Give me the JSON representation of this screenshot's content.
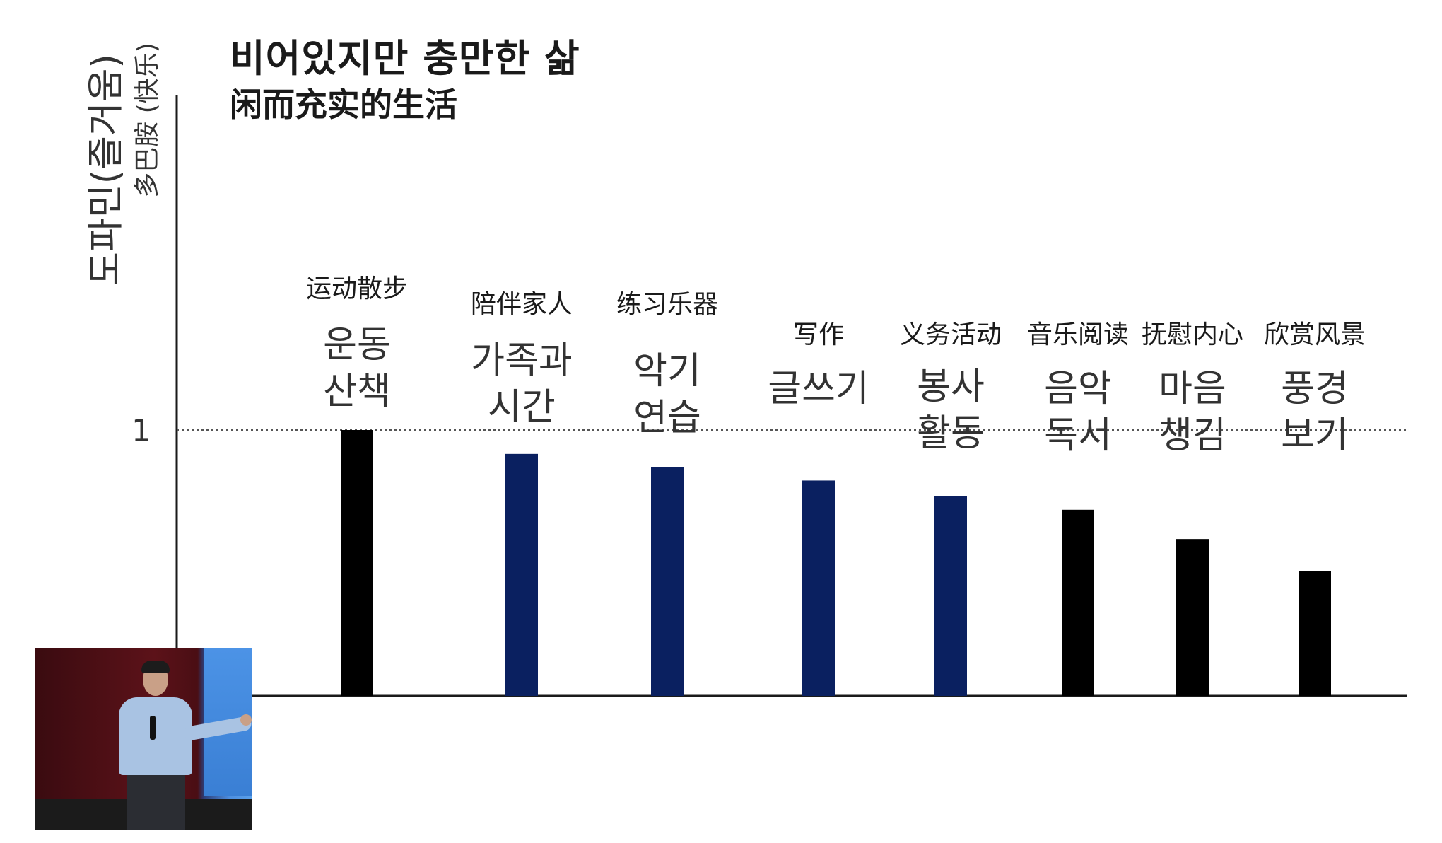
{
  "title": {
    "korean": "비어있지만 충만한 삶",
    "chinese": "闲而充实的生活"
  },
  "chart_data": {
    "type": "bar",
    "title": "비어있지만 충만한 삶",
    "subtitle": "闲而充实的生活",
    "ylabel": "도파민(즐거움)",
    "ylabel_secondary": "多巴胺 (快乐)",
    "xlabel": "",
    "ylim": [
      0,
      2
    ],
    "y_ticks": [
      1
    ],
    "y_tick_labels": [
      "1"
    ],
    "reference_line": {
      "y": 1,
      "style": "dotted"
    },
    "grid": false,
    "legend": "none",
    "categories": [
      {
        "ko": [
          "운동",
          "산책"
        ],
        "zh": "运动散步",
        "value": 1.0,
        "color": "#000000"
      },
      {
        "ko": [
          "가족과",
          "시간"
        ],
        "zh": "陪伴家人",
        "value": 0.91,
        "color": "#0a2060"
      },
      {
        "ko": [
          "악기",
          "연습"
        ],
        "zh": "练习乐器",
        "value": 0.86,
        "color": "#0a2060"
      },
      {
        "ko": [
          "글쓰기"
        ],
        "zh": "写作",
        "value": 0.81,
        "color": "#0a2060"
      },
      {
        "ko": [
          "봉사",
          "활동"
        ],
        "zh": "义务活动",
        "value": 0.75,
        "color": "#0a2060"
      },
      {
        "ko": [
          "음악",
          "독서"
        ],
        "zh": "音乐阅读",
        "value": 0.7,
        "color": "#000000"
      },
      {
        "ko": [
          "마음",
          "챙김"
        ],
        "zh": "抚慰内心",
        "value": 0.59,
        "color": "#000000"
      },
      {
        "ko": [
          "풍경",
          "보기"
        ],
        "zh": "欣赏风景",
        "value": 0.47,
        "color": "#000000"
      }
    ]
  },
  "colors": {
    "axis": "#1a1a1a",
    "text": "#222222",
    "navy_bar": "#0a2060",
    "black_bar": "#000000"
  }
}
